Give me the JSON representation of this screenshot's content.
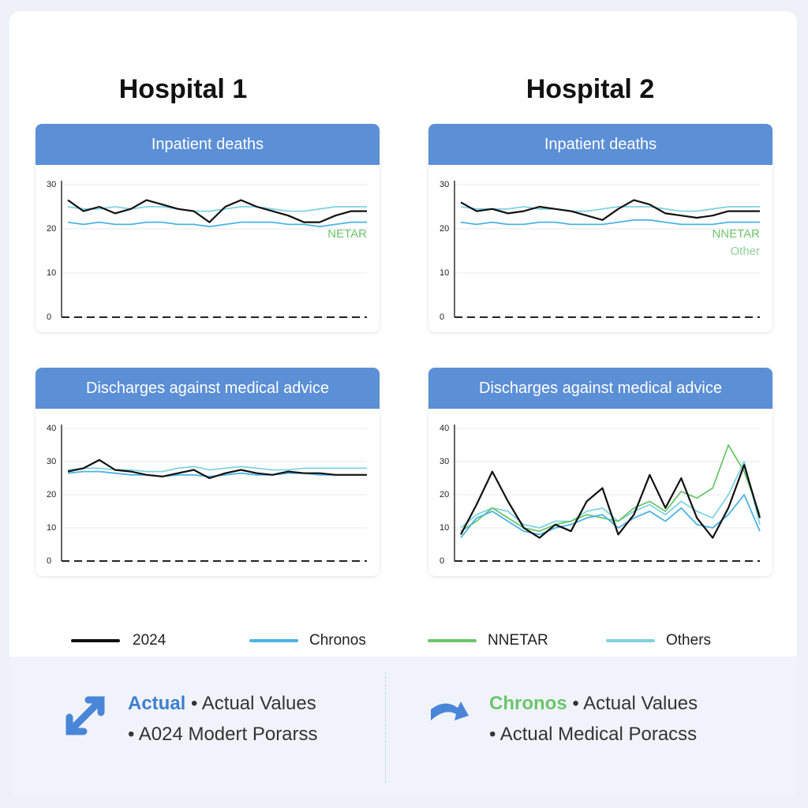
{
  "columns": [
    {
      "title": "Hospital 1"
    },
    {
      "title": "Hospital 2"
    }
  ],
  "chart_data": [
    {
      "type": "line",
      "title": "Inpatient deaths",
      "ylim": [
        0,
        30
      ],
      "yticks": [
        0,
        10,
        20,
        30
      ],
      "grid": true,
      "annotations": [
        {
          "text": "NETAR",
          "color": "#6cc56c"
        }
      ],
      "x": [
        0,
        1,
        2,
        3,
        4,
        5,
        6,
        7,
        8,
        9,
        10,
        11,
        12,
        13,
        14,
        15,
        16,
        17,
        18,
        19
      ],
      "series": [
        {
          "name": "Others",
          "color": "#7fd3e0",
          "values": [
            25,
            24.5,
            24.5,
            25,
            24.5,
            25,
            25,
            24.5,
            24,
            24,
            24.5,
            25,
            25,
            24.5,
            24,
            24,
            24.5,
            25,
            25,
            25
          ]
        },
        {
          "name": "Chronos",
          "color": "#4bb3e6",
          "values": [
            21.5,
            21,
            21.5,
            21,
            21,
            21.5,
            21.5,
            21,
            21,
            20.5,
            21,
            21.5,
            21.5,
            21.5,
            21,
            21,
            20.5,
            21,
            21.5,
            21.5
          ]
        },
        {
          "name": "2024",
          "color": "#111111",
          "values": [
            26.5,
            24,
            25,
            23.5,
            24.5,
            26.5,
            25.5,
            24.5,
            24,
            21.5,
            25,
            26.5,
            25,
            24,
            23,
            21.5,
            21.5,
            23,
            24,
            24
          ]
        }
      ]
    },
    {
      "type": "line",
      "title": "Inpatient deaths",
      "ylim": [
        0,
        30
      ],
      "yticks": [
        0,
        10,
        20,
        30
      ],
      "grid": true,
      "annotations": [
        {
          "text": "NNETAR",
          "color": "#6cc56c"
        },
        {
          "text": "Other",
          "color": "#8fcf9a"
        }
      ],
      "x": [
        0,
        1,
        2,
        3,
        4,
        5,
        6,
        7,
        8,
        9,
        10,
        11,
        12,
        13,
        14,
        15,
        16,
        17,
        18,
        19
      ],
      "series": [
        {
          "name": "Others",
          "color": "#7fd3e0",
          "values": [
            25,
            24.5,
            24.5,
            24.5,
            25,
            24.5,
            24.5,
            24,
            24,
            24.5,
            25,
            25,
            25,
            24.5,
            24,
            24,
            24.5,
            25,
            25,
            25
          ]
        },
        {
          "name": "Chronos",
          "color": "#4bb3e6",
          "values": [
            21.5,
            21,
            21.5,
            21,
            21,
            21.5,
            21.5,
            21,
            21,
            21,
            21.5,
            22,
            22,
            21.5,
            21,
            21,
            21,
            21.5,
            21.5,
            21.5
          ]
        },
        {
          "name": "2024",
          "color": "#111111",
          "values": [
            26,
            24,
            24.5,
            23.5,
            24,
            25,
            24.5,
            24,
            23,
            22,
            24.5,
            26.5,
            25.5,
            23.5,
            23,
            22.5,
            23,
            24,
            24,
            24
          ]
        }
      ]
    },
    {
      "type": "line",
      "title": "Discharges against medical advice",
      "ylim": [
        0,
        40
      ],
      "yticks": [
        0,
        10,
        20,
        30,
        40
      ],
      "grid": true,
      "annotations": [],
      "x": [
        0,
        1,
        2,
        3,
        4,
        5,
        6,
        7,
        8,
        9,
        10,
        11,
        12,
        13,
        14,
        15,
        16,
        17,
        18,
        19
      ],
      "series": [
        {
          "name": "Others",
          "color": "#7fd3e0",
          "values": [
            27.5,
            28,
            28,
            27.5,
            27.5,
            27,
            27,
            28,
            28.5,
            27.5,
            28,
            28.5,
            28,
            27.5,
            27.5,
            28,
            28,
            28,
            28,
            28
          ]
        },
        {
          "name": "Chronos",
          "color": "#4bb3e6",
          "values": [
            26.5,
            27,
            27,
            26.5,
            26,
            26,
            25.5,
            26,
            26,
            25.5,
            26,
            26.5,
            26,
            26,
            26.5,
            26.5,
            26,
            26,
            26,
            26
          ]
        },
        {
          "name": "2024",
          "color": "#111111",
          "values": [
            27,
            28,
            30.5,
            27.5,
            27,
            26,
            25.5,
            26.5,
            27.5,
            25,
            26.5,
            27.5,
            26.5,
            26,
            27,
            26.5,
            26.5,
            26,
            26,
            26
          ]
        }
      ]
    },
    {
      "type": "line",
      "title": "Discharges against medical advice",
      "ylim": [
        0,
        40
      ],
      "yticks": [
        0,
        10,
        20,
        30,
        40
      ],
      "grid": true,
      "annotations": [],
      "x": [
        0,
        1,
        2,
        3,
        4,
        5,
        6,
        7,
        8,
        9,
        10,
        11,
        12,
        13,
        14,
        15,
        16,
        17,
        18,
        19
      ],
      "series": [
        {
          "name": "Others",
          "color": "#7fd3e0",
          "values": [
            10,
            14,
            16,
            15,
            11,
            10,
            12,
            12,
            15,
            16,
            12,
            15,
            17,
            14,
            18,
            15,
            13,
            20,
            30,
            11
          ]
        },
        {
          "name": "NNETAR",
          "color": "#6cc56c",
          "values": [
            9,
            12,
            16,
            13,
            10,
            9,
            11,
            12,
            14,
            13,
            12,
            16,
            18,
            15,
            21,
            19,
            22,
            35,
            27,
            14
          ]
        },
        {
          "name": "Chronos",
          "color": "#4bb3e6",
          "values": [
            7,
            13,
            15,
            12,
            9,
            8,
            10,
            11,
            13,
            14,
            10,
            13,
            15,
            12,
            16,
            11,
            10,
            14,
            20,
            9
          ]
        },
        {
          "name": "2024",
          "color": "#111111",
          "values": [
            8,
            17,
            27,
            18,
            10,
            7,
            11,
            9,
            18,
            22,
            8,
            14,
            26,
            16,
            25,
            13,
            7,
            16,
            29,
            13
          ]
        }
      ]
    }
  ],
  "legend": [
    {
      "name": "2024",
      "color": "#111111"
    },
    {
      "name": "Chronos",
      "color": "#4bb3e6"
    },
    {
      "name": "NNETAR",
      "color": "#6cc56c"
    },
    {
      "name": "Others",
      "color": "#7fd3e0"
    }
  ],
  "footer": [
    {
      "label": "Actual",
      "label_color": "#3f7fd0",
      "line1": "Actual Values",
      "line2": "A024 Modert Porarss"
    },
    {
      "label": "Chronos",
      "label_color": "#6cc56c",
      "line1": "Actual Values",
      "line2": "Actual Medical Poracss"
    }
  ]
}
